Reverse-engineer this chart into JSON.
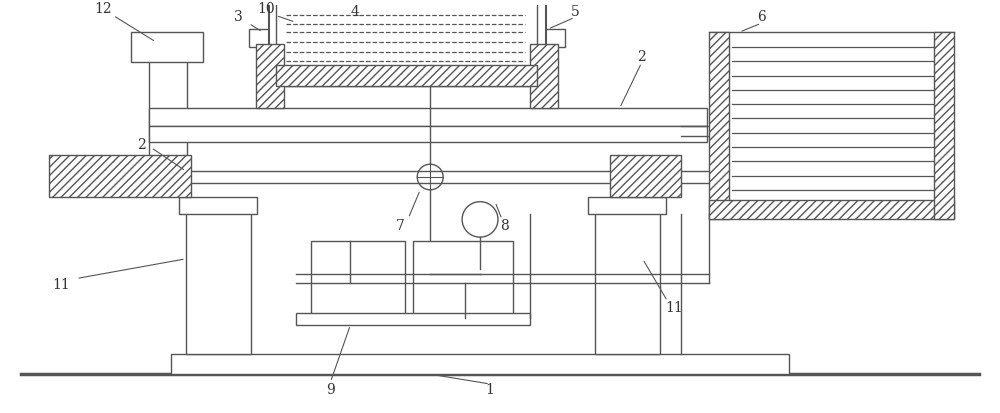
{
  "bg_color": "#ffffff",
  "line_color": "#555555",
  "fig_width": 10.0,
  "fig_height": 4.13,
  "dpi": 100
}
